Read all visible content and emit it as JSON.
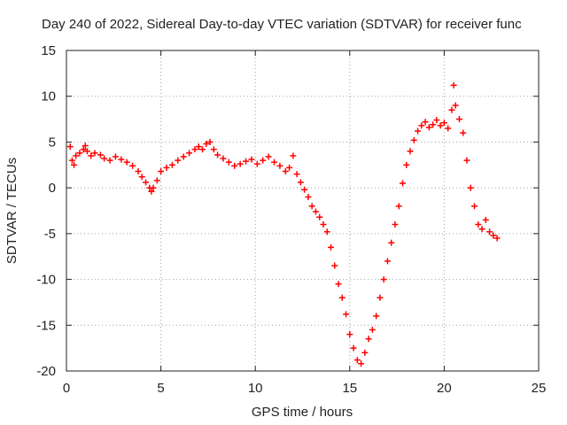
{
  "chart_data": {
    "type": "scatter",
    "title": "Day 240 of 2022, Sidereal Day-to-day VTEC variation (SDTVAR) for receiver func",
    "xlabel": "GPS time / hours",
    "ylabel": "SDTVAR / TECUs",
    "xlim": [
      0,
      25
    ],
    "ylim": [
      -20,
      15
    ],
    "xticks": [
      0,
      5,
      10,
      15,
      20,
      25
    ],
    "yticks": [
      -20,
      -15,
      -10,
      -5,
      0,
      5,
      10,
      15
    ],
    "grid": true,
    "marker": "+",
    "color": "#ff0000",
    "series": [
      {
        "name": "SDTVAR",
        "x": [
          0.2,
          0.3,
          0.4,
          0.5,
          0.7,
          0.9,
          1.0,
          1.1,
          1.3,
          1.5,
          1.8,
          2.0,
          2.3,
          2.6,
          2.9,
          3.2,
          3.5,
          3.8,
          4.0,
          4.2,
          4.4,
          4.5,
          4.6,
          4.8,
          5.0,
          5.3,
          5.6,
          5.9,
          6.2,
          6.5,
          6.8,
          7.0,
          7.2,
          7.4,
          7.6,
          7.8,
          8.0,
          8.3,
          8.6,
          8.9,
          9.2,
          9.5,
          9.8,
          10.1,
          10.4,
          10.7,
          11.0,
          11.3,
          11.6,
          11.8,
          12.0,
          12.2,
          12.4,
          12.6,
          12.8,
          13.0,
          13.2,
          13.4,
          13.6,
          13.8,
          14.0,
          14.2,
          14.4,
          14.6,
          14.8,
          15.0,
          15.2,
          15.4,
          15.6,
          15.8,
          16.0,
          16.2,
          16.4,
          16.6,
          16.8,
          17.0,
          17.2,
          17.4,
          17.6,
          17.8,
          18.0,
          18.2,
          18.4,
          18.6,
          18.8,
          19.0,
          19.2,
          19.4,
          19.6,
          19.8,
          20.0,
          20.2,
          20.4,
          20.5,
          20.6,
          20.8,
          21.0,
          21.2,
          21.4,
          21.6,
          21.8,
          22.0,
          22.2,
          22.4,
          22.6,
          22.8
        ],
        "y": [
          4.5,
          3.0,
          2.5,
          3.5,
          3.8,
          4.2,
          4.6,
          4.0,
          3.5,
          3.8,
          3.6,
          3.2,
          3.0,
          3.4,
          3.1,
          2.8,
          2.4,
          1.8,
          1.2,
          0.6,
          0.0,
          -0.4,
          0.0,
          0.8,
          1.8,
          2.2,
          2.5,
          3.0,
          3.4,
          3.8,
          4.2,
          4.5,
          4.2,
          4.8,
          5.0,
          4.2,
          3.6,
          3.2,
          2.8,
          2.4,
          2.6,
          2.9,
          3.1,
          2.6,
          3.0,
          3.4,
          2.8,
          2.4,
          1.8,
          2.2,
          3.5,
          1.5,
          0.6,
          -0.2,
          -1.0,
          -2.0,
          -2.6,
          -3.2,
          -4.0,
          -4.8,
          -6.5,
          -8.5,
          -10.5,
          -12.0,
          -13.8,
          -16.0,
          -17.5,
          -18.8,
          -19.2,
          -18.0,
          -16.5,
          -15.5,
          -14.0,
          -12.0,
          -10.0,
          -8.0,
          -6.0,
          -4.0,
          -2.0,
          0.5,
          2.5,
          4.0,
          5.2,
          6.2,
          6.8,
          7.2,
          6.6,
          6.9,
          7.4,
          6.8,
          7.1,
          6.5,
          8.5,
          11.2,
          9.0,
          7.5,
          6.0,
          3.0,
          0.0,
          -2.0,
          -4.0,
          -4.5,
          -3.5,
          -4.8,
          -5.2,
          -5.5
        ]
      }
    ]
  }
}
